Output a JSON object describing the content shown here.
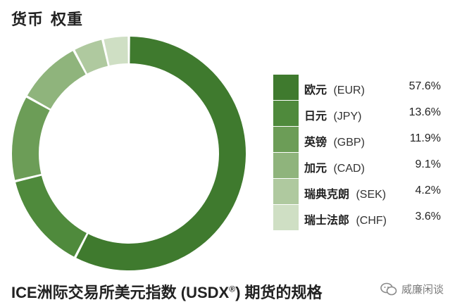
{
  "header": {
    "title_part1": "货币",
    "title_part2": "权重"
  },
  "chart_data": {
    "type": "pie",
    "donut": true,
    "start": "top",
    "direction": "clockwise",
    "slices": [
      {
        "label_zh": "欧元",
        "code": "(EUR)",
        "value": 57.6,
        "value_text": "57.6%",
        "color": "#3f7a2e"
      },
      {
        "label_zh": "日元",
        "code": "(JPY)",
        "value": 13.6,
        "value_text": "13.6%",
        "color": "#4f8a3c"
      },
      {
        "label_zh": "英镑",
        "code": "(GBP)",
        "value": 11.9,
        "value_text": "11.9%",
        "color": "#6c9d57"
      },
      {
        "label_zh": "加元",
        "code": "(CAD)",
        "value": 9.1,
        "value_text": "9.1%",
        "color": "#8fb47c"
      },
      {
        "label_zh": "瑞典克朗",
        "code": "(SEK)",
        "value": 4.2,
        "value_text": "4.2%",
        "color": "#afc99f"
      },
      {
        "label_zh": "瑞士法郎",
        "code": "(CHF)",
        "value": 3.6,
        "value_text": "3.6%",
        "color": "#cfdfc4"
      }
    ]
  },
  "footer": {
    "text_before": "ICE洲际交易所美元指数 (USDX",
    "registered": "®",
    "text_after": ") 期货的规格"
  },
  "watermark": {
    "text": "威廉闲谈",
    "icon": "wechat-icon",
    "color": "#8a8a8a"
  }
}
